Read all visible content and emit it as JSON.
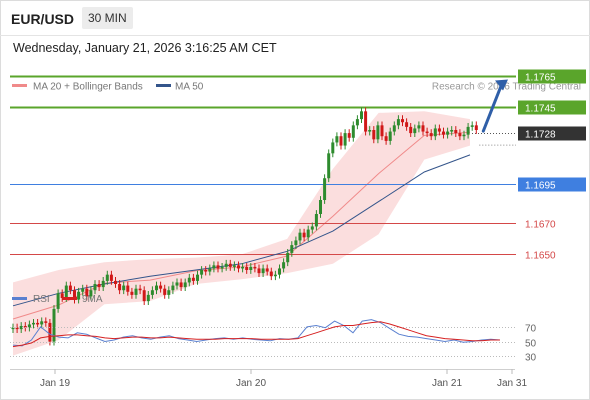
{
  "header": {
    "pair": "EUR/USD",
    "timeframe": "30 MIN"
  },
  "datetime": "Wednesday, January 21, 2026 3:16:25 AM CET",
  "legend": {
    "ma20_label": "MA 20 + Bollinger Bands",
    "ma50_label": "MA 50",
    "credit": "Research © 2026 Trading Central"
  },
  "colors": {
    "up": "#2e8b2e",
    "down": "#d01818",
    "ma20": "#f08a8a",
    "bands": "#f9d3d3",
    "ma50": "#34558b",
    "resistance": "#5aa52b",
    "support": "#d44848",
    "pivot": "#3f7fe0",
    "current": "#333333",
    "rsi": "#5a80d0",
    "rsi_ma": "#d62020"
  },
  "chart_data": [
    {
      "type": "candlestick",
      "title": "EUR/USD 30 MIN",
      "x_ticks": [
        "Jan 19",
        "Jan 20",
        "Jan 21",
        "Jan 31"
      ],
      "y_range": [
        1.1595,
        1.1775
      ],
      "series": [
        {
          "name": "MA 20 + Bollinger Bands"
        },
        {
          "name": "MA 50"
        }
      ],
      "levels": [
        {
          "value": 1.1765,
          "label": "1.1765",
          "kind": "resistance"
        },
        {
          "value": 1.1745,
          "label": "1.1745",
          "kind": "resistance"
        },
        {
          "value": 1.1728,
          "label": "1.1728",
          "kind": "current"
        },
        {
          "value": 1.1695,
          "label": "1.1695",
          "kind": "pivot"
        },
        {
          "value": 1.167,
          "label": "1.1670",
          "kind": "support"
        },
        {
          "value": 1.165,
          "label": "1.1650",
          "kind": "support"
        }
      ],
      "closes": [
        1.1603,
        1.1602,
        1.1604,
        1.1603,
        1.1605,
        1.1606,
        1.1605,
        1.1607,
        1.1606,
        1.1594,
        1.1615,
        1.1625,
        1.1622,
        1.163,
        1.1627,
        1.1621,
        1.1626,
        1.1628,
        1.1623,
        1.1627,
        1.1631,
        1.1629,
        1.1633,
        1.1637,
        1.1633,
        1.1631,
        1.1627,
        1.163,
        1.1626,
        1.1624,
        1.1628,
        1.1627,
        1.162,
        1.1624,
        1.1627,
        1.163,
        1.1628,
        1.1624,
        1.1627,
        1.163,
        1.1632,
        1.1629,
        1.1632,
        1.1635,
        1.1633,
        1.1637,
        1.164,
        1.1639,
        1.1641,
        1.1643,
        1.1641,
        1.1642,
        1.1644,
        1.1642,
        1.1643,
        1.1641,
        1.1642,
        1.164,
        1.1642,
        1.1641,
        1.1638,
        1.1641,
        1.1639,
        1.1636,
        1.1637,
        1.1641,
        1.1645,
        1.1651,
        1.1656,
        1.1659,
        1.1664,
        1.1661,
        1.1666,
        1.1668,
        1.1676,
        1.1685,
        1.1699,
        1.1715,
        1.1722,
        1.1726,
        1.172,
        1.1728,
        1.1725,
        1.1733,
        1.1737,
        1.1742,
        1.1729,
        1.173,
        1.1724,
        1.1733,
        1.1726,
        1.1723,
        1.1729,
        1.1733,
        1.1737,
        1.1735,
        1.1732,
        1.1728,
        1.1731,
        1.1733,
        1.1729,
        1.1728,
        1.1726,
        1.1731,
        1.1729,
        1.1727,
        1.1729,
        1.173,
        1.1728,
        1.1726,
        1.1727,
        1.1732,
        1.1733,
        1.173
      ],
      "closes_note": "approximate 30-minute closes read from the chart",
      "ma50": [
        1.1617,
        1.1625,
        1.1631,
        1.1636,
        1.164,
        1.1644,
        1.1652,
        1.1665,
        1.1684,
        1.1703,
        1.1714
      ],
      "ma20_band_upper": [
        1.1632,
        1.164,
        1.1645,
        1.1647,
        1.1648,
        1.165,
        1.166,
        1.1705,
        1.1741,
        1.1742,
        1.1737
      ],
      "ma20_band_lower": [
        1.1585,
        1.1595,
        1.1618,
        1.162,
        1.1631,
        1.1634,
        1.1638,
        1.1644,
        1.1663,
        1.1711,
        1.172
      ],
      "projection_arrow": {
        "from": 1.1728,
        "to": 1.1765
      }
    },
    {
      "type": "line",
      "title": "RSI",
      "y_ticks": [
        30,
        50,
        70
      ],
      "y_range": [
        15,
        85
      ],
      "series": [
        {
          "name": "RSI",
          "values": [
            45,
            44,
            52,
            70,
            60,
            56,
            55,
            62,
            60,
            55,
            50,
            52,
            56,
            58,
            55,
            53,
            56,
            58,
            54,
            52,
            50,
            52,
            54,
            55,
            53,
            55,
            53,
            52,
            51,
            54,
            53,
            55,
            70,
            72,
            69,
            78,
            72,
            62,
            78,
            80,
            76,
            68,
            60,
            57,
            56,
            54,
            52,
            50,
            52,
            49,
            50,
            52,
            53,
            52
          ]
        },
        {
          "name": "9MA",
          "values": [
            43,
            45,
            48,
            55,
            57,
            58,
            59,
            59,
            58,
            57,
            55,
            54,
            55,
            56,
            56,
            55,
            55,
            56,
            55,
            54,
            53,
            53,
            53,
            54,
            54,
            54,
            54,
            53,
            53,
            53,
            53,
            54,
            58,
            62,
            66,
            70,
            72,
            72,
            74,
            76,
            77,
            74,
            70,
            66,
            62,
            58,
            56,
            54,
            53,
            52,
            51,
            51,
            52,
            52
          ]
        }
      ]
    }
  ],
  "rsi_legend": {
    "rsi_label": "RSI",
    "ma_label": "9MA"
  }
}
